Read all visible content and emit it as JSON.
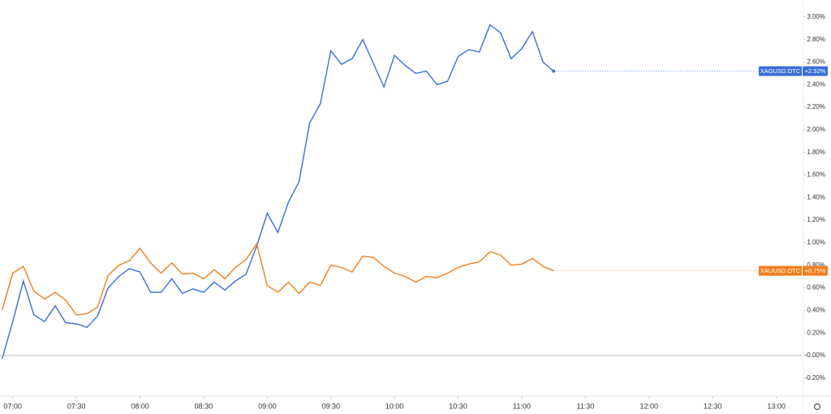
{
  "chart_data": {
    "type": "line",
    "x": [
      "06:55",
      "07:00",
      "07:05",
      "07:10",
      "07:15",
      "07:20",
      "07:25",
      "07:30",
      "07:35",
      "07:40",
      "07:45",
      "07:50",
      "07:55",
      "08:00",
      "08:05",
      "08:10",
      "08:15",
      "08:20",
      "08:25",
      "08:30",
      "08:35",
      "08:40",
      "08:45",
      "08:50",
      "08:55",
      "09:00",
      "09:05",
      "09:10",
      "09:15",
      "09:20",
      "09:25",
      "09:30",
      "09:35",
      "09:40",
      "09:45",
      "09:50",
      "09:55",
      "10:00",
      "10:05",
      "10:10",
      "10:15",
      "10:20",
      "10:25",
      "10:30",
      "10:35",
      "10:40",
      "10:45",
      "10:50",
      "10:55",
      "11:00",
      "11:05",
      "11:10",
      "11:15"
    ],
    "series": [
      {
        "name": "XAGUSD.OTC",
        "color": "#3a6fd8",
        "last_label": "+2.52%",
        "values": [
          -0.03,
          0.3,
          0.66,
          0.36,
          0.3,
          0.44,
          0.29,
          0.28,
          0.25,
          0.35,
          0.6,
          0.7,
          0.77,
          0.74,
          0.56,
          0.56,
          0.68,
          0.55,
          0.59,
          0.56,
          0.65,
          0.58,
          0.66,
          0.72,
          0.97,
          1.26,
          1.09,
          1.36,
          1.54,
          2.06,
          2.23,
          2.7,
          2.58,
          2.63,
          2.8,
          2.59,
          2.38,
          2.66,
          2.57,
          2.5,
          2.52,
          2.4,
          2.43,
          2.65,
          2.71,
          2.69,
          2.93,
          2.86,
          2.63,
          2.72,
          2.87,
          2.6,
          2.52
        ]
      },
      {
        "name": "XAUUSD.OTC",
        "color": "#f07f1e",
        "last_label": "+0.75%",
        "values": [
          0.4,
          0.73,
          0.79,
          0.57,
          0.5,
          0.56,
          0.49,
          0.36,
          0.37,
          0.43,
          0.71,
          0.8,
          0.84,
          0.95,
          0.82,
          0.73,
          0.82,
          0.72,
          0.73,
          0.68,
          0.76,
          0.68,
          0.78,
          0.85,
          0.99,
          0.62,
          0.56,
          0.65,
          0.55,
          0.65,
          0.62,
          0.8,
          0.78,
          0.74,
          0.88,
          0.87,
          0.79,
          0.73,
          0.7,
          0.65,
          0.7,
          0.69,
          0.73,
          0.78,
          0.81,
          0.83,
          0.92,
          0.89,
          0.8,
          0.81,
          0.86,
          0.79,
          0.75
        ]
      }
    ],
    "xlim": [
      "06:54",
      "13:12"
    ],
    "xticks": [
      "07:00",
      "07:30",
      "08:00",
      "08:30",
      "09:00",
      "09:30",
      "10:00",
      "10:30",
      "11:00",
      "11:30",
      "12:00",
      "12:30",
      "13:00"
    ],
    "ylim": [
      -0.36,
      3.15
    ],
    "yticks": [
      {
        "value": 3.0,
        "label": "3.00%"
      },
      {
        "value": 2.8,
        "label": "2.80%"
      },
      {
        "value": 2.6,
        "label": "2.60%"
      },
      {
        "value": 2.4,
        "label": "2.40%"
      },
      {
        "value": 2.2,
        "label": "2.20%"
      },
      {
        "value": 2.0,
        "label": "2.00%"
      },
      {
        "value": 1.8,
        "label": "1.80%"
      },
      {
        "value": 1.6,
        "label": "1.60%"
      },
      {
        "value": 1.4,
        "label": "1.40%"
      },
      {
        "value": 1.2,
        "label": "1.20%"
      },
      {
        "value": 1.0,
        "label": "1.00%"
      },
      {
        "value": 0.8,
        "label": "0.80%"
      },
      {
        "value": 0.6,
        "label": "0.60%"
      },
      {
        "value": 0.4,
        "label": "0.40%"
      },
      {
        "value": 0.2,
        "label": "0.20%"
      },
      {
        "value": 0,
        "label": "-0.00%"
      },
      {
        "value": -0.2,
        "label": "-0.20%"
      }
    ],
    "grid": false
  }
}
